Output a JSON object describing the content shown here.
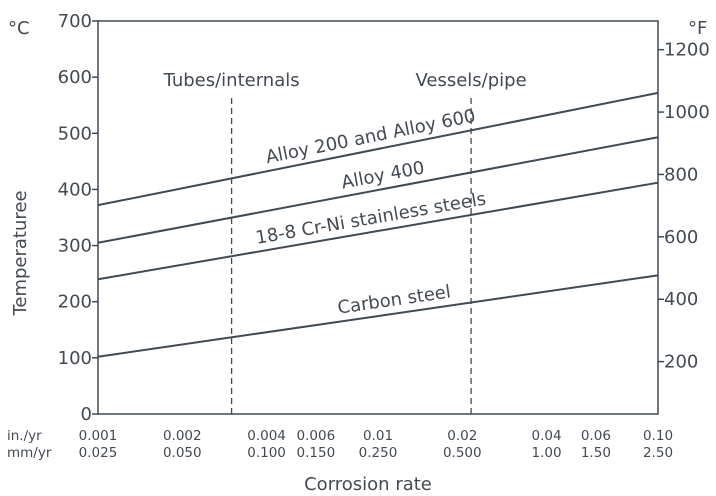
{
  "chart_data": {
    "type": "line",
    "xlabel": "Corrosion rate",
    "ylabel": "Temperaturee",
    "y_unit_left": "°C",
    "y_unit_right": "°F",
    "x_row_units": [
      "in./yr",
      "mm/yr"
    ],
    "x_scale": "log",
    "xlim": [
      0.001,
      0.1
    ],
    "ylim": [
      0,
      700
    ],
    "y_ticks": [
      0,
      100,
      200,
      300,
      400,
      500,
      600,
      700
    ],
    "y2_ticks": [
      {
        "label": "200",
        "celsius": 93.3
      },
      {
        "label": "400",
        "celsius": 204.4
      },
      {
        "label": "600",
        "celsius": 315.6
      },
      {
        "label": "800",
        "celsius": 426.7
      },
      {
        "label": "1000",
        "celsius": 537.8
      },
      {
        "label": "1200",
        "celsius": 648.9
      }
    ],
    "x_ticks": [
      {
        "inyr": "0.001",
        "mmyr": "0.025",
        "value": 0.001
      },
      {
        "inyr": "0.002",
        "mmyr": "0.050",
        "value": 0.002
      },
      {
        "inyr": "0.004",
        "mmyr": "0.100",
        "value": 0.004
      },
      {
        "inyr": "0.006",
        "mmyr": "0.150",
        "value": 0.006
      },
      {
        "inyr": "0.01",
        "mmyr": "0.250",
        "value": 0.01
      },
      {
        "inyr": "0.02",
        "mmyr": "0.500",
        "value": 0.02
      },
      {
        "inyr": "0.04",
        "mmyr": "1.00",
        "value": 0.04
      },
      {
        "inyr": "0.06",
        "mmyr": "1.50",
        "value": 0.06
      },
      {
        "inyr": "0.10",
        "mmyr": "2.50",
        "value": 0.1
      }
    ],
    "series": [
      {
        "name": "Alloy 200 and Alloy 600",
        "x": [
          0.001,
          0.1
        ],
        "y": [
          372,
          572
        ]
      },
      {
        "name": "Alloy 400",
        "x": [
          0.001,
          0.1
        ],
        "y": [
          305,
          493
        ]
      },
      {
        "name": "18-8 Cr-Ni stainless steels",
        "x": [
          0.001,
          0.1
        ],
        "y": [
          240,
          412
        ]
      },
      {
        "name": "Carbon steel",
        "x": [
          0.001,
          0.1
        ],
        "y": [
          102,
          247
        ]
      }
    ],
    "annotations": [
      {
        "text": "Tubes/internals",
        "x": 0.003
      },
      {
        "text": "Vessels/pipe",
        "x": 0.0215
      }
    ],
    "line_color": "#3f4a55",
    "grid": false
  }
}
